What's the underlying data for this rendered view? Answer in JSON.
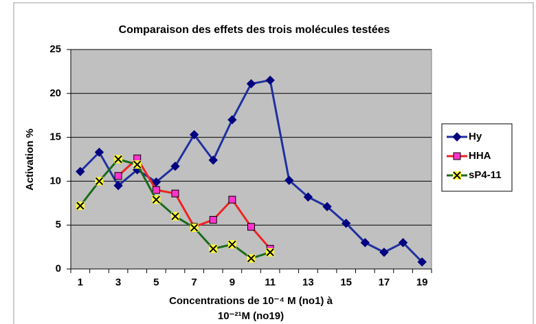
{
  "chart_data": {
    "type": "line",
    "title": "Comparaison des effets des trois molécules testées",
    "x_label": [
      "Concentrations de 10⁻⁴ M (no1) à",
      "10⁻²¹M (no19)"
    ],
    "y_label": "Activation %",
    "categories": [
      "1",
      null,
      "3",
      null,
      "5",
      null,
      "7",
      null,
      "9",
      null,
      "11",
      null,
      "13",
      null,
      "15",
      null,
      "17",
      null,
      "19"
    ],
    "series": [
      {
        "name": "Hy",
        "color": "#1f2f9f",
        "marker": "diamond",
        "marker_color": "#000080",
        "values": [
          11.1,
          13.3,
          9.5,
          11.3,
          9.9,
          11.7,
          15.3,
          12.4,
          17.0,
          21.1,
          21.5,
          10.1,
          8.2,
          7.1,
          5.2,
          3.0,
          1.9,
          3.0,
          0.8
        ]
      },
      {
        "name": "HHA",
        "color": "#ee2222",
        "marker": "square",
        "marker_color": "#ff33cc",
        "values": [
          null,
          null,
          10.6,
          12.6,
          9.0,
          8.6,
          4.8,
          5.6,
          7.9,
          4.8,
          2.3,
          null,
          null,
          null,
          null,
          null,
          null,
          null,
          null
        ]
      },
      {
        "name": "sP4-11",
        "color": "#1a6a1a",
        "marker": "x",
        "marker_color": "#ffff33",
        "values": [
          7.2,
          10.0,
          12.5,
          11.9,
          7.9,
          6.0,
          4.7,
          2.3,
          2.8,
          1.2,
          1.9,
          null,
          null,
          null,
          null,
          null,
          null,
          null,
          null
        ]
      }
    ],
    "ylim": [
      0,
      25
    ],
    "yticks": [
      0,
      5,
      10,
      15,
      20,
      25
    ],
    "grid": true,
    "legend": "right",
    "plot_background": "#c0c0c0"
  }
}
